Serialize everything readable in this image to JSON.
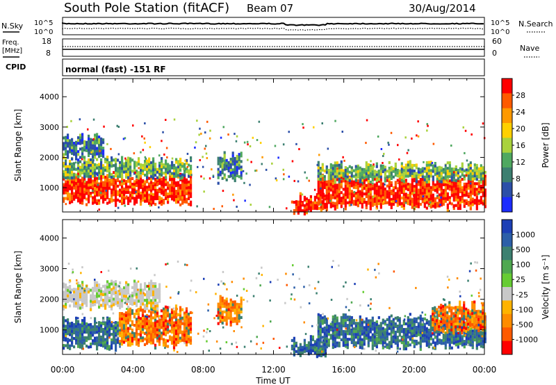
{
  "header": {
    "station": "South Pole Station (fitACF)",
    "beam": "Beam 07",
    "date": "30/Aug/2014"
  },
  "status_panels": {
    "nsky_label": "N.Sky",
    "nsearch_label": "N.Search",
    "left_ticks": [
      "10^5",
      "10^0"
    ],
    "right_ticks": [
      "10^5",
      "10^0"
    ],
    "freq_label": "Freq.",
    "freq_unit": "[MHz]",
    "freq_ticks": [
      "18",
      "8"
    ],
    "nave_label": "Nave",
    "nave_ticks": [
      "60",
      "0"
    ],
    "cpid_label": "CPID",
    "cpid_text": "normal (fast) -151 RF"
  },
  "chart_data": [
    {
      "type": "heatmap",
      "name": "power",
      "ylabel": "Slant Range [km]",
      "yticks": [
        "4000",
        "3000",
        "2000",
        "1000"
      ],
      "ylim": [
        200,
        4600
      ],
      "x_ticks": [
        "00:00",
        "04:00",
        "08:00",
        "12:00",
        "16:00",
        "20:00",
        "00:00"
      ],
      "colorbar": {
        "label": "Power [dB]",
        "ticks": [
          "28",
          "24",
          "20",
          "16",
          "12",
          "8",
          "4"
        ],
        "colors": [
          "#ff0000",
          "#ff5a00",
          "#ff9900",
          "#ffd000",
          "#a9d23c",
          "#4fa860",
          "#3c7f70",
          "#2c4fa8",
          "#1c2cff"
        ]
      },
      "bands": [
        {
          "t0": 0.0,
          "t1": 7.3,
          "r0": 550,
          "r1": 1400,
          "level": "high"
        },
        {
          "t0": 0.0,
          "t1": 7.3,
          "r0": 1400,
          "r1": 1900,
          "level": "mid"
        },
        {
          "t0": 0.0,
          "t1": 2.3,
          "r0": 2000,
          "r1": 2650,
          "level": "low"
        },
        {
          "t0": 8.8,
          "t1": 10.2,
          "r0": 1300,
          "r1": 2100,
          "level": "low"
        },
        {
          "t0": 13.0,
          "t1": 15.0,
          "r0": 250,
          "r1": 700,
          "level": "high"
        },
        {
          "t0": 14.5,
          "t1": 24.0,
          "r0": 400,
          "r1": 1300,
          "level": "high"
        },
        {
          "t0": 14.5,
          "t1": 24.0,
          "r0": 1300,
          "r1": 1750,
          "level": "mid"
        }
      ]
    },
    {
      "type": "heatmap",
      "name": "velocity",
      "ylabel": "Slant Range [km]",
      "yticks": [
        "4000",
        "3000",
        "2000",
        "1000"
      ],
      "ylim": [
        200,
        4600
      ],
      "x_ticks": [
        "00:00",
        "04:00",
        "08:00",
        "12:00",
        "16:00",
        "20:00",
        "00:00"
      ],
      "xlabel": "Time UT",
      "colorbar": {
        "label": "Velocity [m s⁻¹]",
        "ticks": [
          "1000",
          "500",
          "100",
          "25",
          "-25",
          "-100",
          "-500",
          "-1000"
        ],
        "colors": [
          "#1c3fb5",
          "#2c5fa8",
          "#3c8070",
          "#4fa850",
          "#66cc33",
          "#c8c8c8",
          "#ffb300",
          "#ff8c00",
          "#ff5a00",
          "#ff0000"
        ]
      },
      "bands": [
        {
          "t0": 0.0,
          "t1": 3.2,
          "r0": 450,
          "r1": 1300,
          "level": "pos"
        },
        {
          "t0": 3.2,
          "t1": 7.3,
          "r0": 550,
          "r1": 1700,
          "level": "neg"
        },
        {
          "t0": 0.0,
          "t1": 5.5,
          "r0": 1800,
          "r1": 2500,
          "level": "zero"
        },
        {
          "t0": 8.8,
          "t1": 10.2,
          "r0": 1300,
          "r1": 2000,
          "level": "neg"
        },
        {
          "t0": 13.0,
          "t1": 15.0,
          "r0": 250,
          "r1": 700,
          "level": "pos"
        },
        {
          "t0": 14.5,
          "t1": 24.0,
          "r0": 500,
          "r1": 1400,
          "level": "pos"
        },
        {
          "t0": 21.0,
          "t1": 24.0,
          "r0": 1000,
          "r1": 1800,
          "level": "neg"
        }
      ]
    }
  ]
}
